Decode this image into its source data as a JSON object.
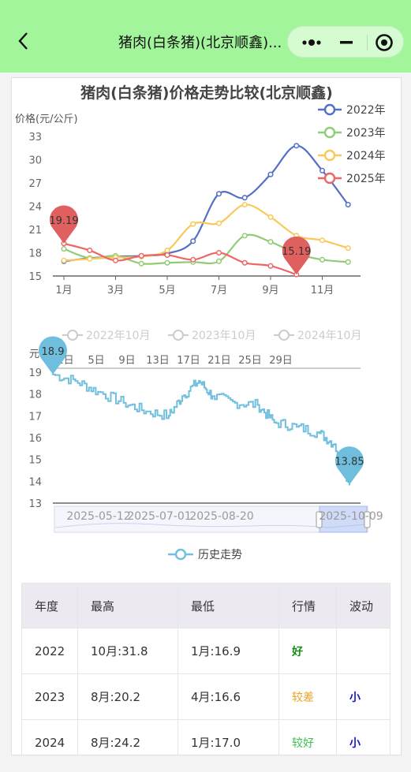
{
  "nav": {
    "title": "猪肉(白条猪)(北京顺鑫)...",
    "back_icon": "chevron-left-icon",
    "more_icon": "more-dots-icon",
    "minimize_icon": "minimize-icon",
    "close_icon": "target-close-icon"
  },
  "chart_data": [
    {
      "type": "line",
      "title": "猪肉(白条猪)价格走势比较(北京顺鑫)",
      "ylabel": "价格(元/公斤)",
      "ylim": [
        15,
        33
      ],
      "yticks": [
        "15",
        "18",
        "21",
        "24",
        "27",
        "30",
        "33"
      ],
      "xticks": [
        "1月",
        "3月",
        "5月",
        "7月",
        "9月",
        "11月"
      ],
      "legend_position": "top-right",
      "series": [
        {
          "name": "2022年",
          "color": "#5470c6",
          "x": [
            1,
            2,
            3,
            4,
            5,
            6,
            7,
            8,
            9,
            10,
            11,
            12
          ],
          "values": [
            16.9,
            17.3,
            17.5,
            17.6,
            17.9,
            19.5,
            25.6,
            25.1,
            28.1,
            31.8,
            28.6,
            24.2
          ]
        },
        {
          "name": "2023年",
          "color": "#91cc75",
          "x": [
            1,
            2,
            3,
            4,
            5,
            6,
            7,
            8,
            9,
            10,
            11,
            12
          ],
          "values": [
            18.5,
            17.3,
            17.6,
            16.6,
            16.7,
            16.8,
            16.9,
            20.2,
            19.4,
            17.9,
            17.1,
            16.8
          ]
        },
        {
          "name": "2024年",
          "color": "#fac858",
          "x": [
            1,
            2,
            3,
            4,
            5,
            6,
            7,
            8,
            9,
            10,
            11,
            12
          ],
          "values": [
            17.0,
            17.2,
            17.4,
            17.5,
            18.3,
            21.7,
            21.8,
            24.2,
            22.6,
            20.2,
            19.6,
            18.6
          ]
        },
        {
          "name": "2025年",
          "color": "#ee6666",
          "x": [
            1,
            2,
            3,
            4,
            5,
            6,
            7,
            8,
            9,
            10
          ],
          "values": [
            19.19,
            18.3,
            17.0,
            17.6,
            17.7,
            17.1,
            18.0,
            16.7,
            16.3,
            15.19
          ]
        }
      ],
      "markers": [
        {
          "label": "19.19",
          "x": 1,
          "y": 19.19
        },
        {
          "label": "15.19",
          "x": 10,
          "y": 15.19
        }
      ]
    },
    {
      "type": "line",
      "ylabel": "元",
      "ylim": [
        13,
        19
      ],
      "yticks": [
        "13",
        "14",
        "15",
        "16",
        "17",
        "18",
        "19"
      ],
      "top_xticks": [
        "1日",
        "5日",
        "9日",
        "13日",
        "17日",
        "21日",
        "25日",
        "29日"
      ],
      "bottom_xticks": [
        "2025-05-12",
        "2025-07-01",
        "2025-08-20",
        "2025-10-09"
      ],
      "top_legend": [
        "2022年10月",
        "2023年10月",
        "2024年10月"
      ],
      "legend_position": "bottom",
      "series": [
        {
          "name": "历史走势",
          "color": "#73c0de",
          "x": [
            "2025-03-26",
            "2025-04-10",
            "2025-04-25",
            "2025-05-12",
            "2025-05-27",
            "2025-06-11",
            "2025-06-20",
            "2025-07-01",
            "2025-07-10",
            "2025-07-25",
            "2025-08-09",
            "2025-08-20",
            "2025-09-04",
            "2025-09-19",
            "2025-09-29",
            "2025-10-09"
          ],
          "values": [
            18.9,
            18.6,
            18.1,
            17.6,
            17.2,
            17.0,
            17.9,
            18.6,
            17.9,
            17.6,
            17.5,
            16.7,
            16.5,
            16.2,
            15.7,
            13.85
          ]
        }
      ],
      "markers": [
        {
          "label": "18.9",
          "x": "2025-03-26",
          "y": 18.9
        },
        {
          "label": "13.85",
          "x": "2025-10-09",
          "y": 13.85
        }
      ]
    }
  ],
  "table": {
    "headers": [
      "年度",
      "最高",
      "最低",
      "行情",
      "波动"
    ],
    "rows": [
      {
        "year": "2022",
        "high": "10月:31.8",
        "low": "1月:16.9",
        "trend": "好",
        "trend_class": "good",
        "vol": ""
      },
      {
        "year": "2023",
        "high": "8月:20.2",
        "low": "4月:16.6",
        "trend": "较差",
        "trend_class": "bad",
        "vol": "小"
      },
      {
        "year": "2024",
        "high": "8月:24.2",
        "low": "1月:17.0",
        "trend": "较好",
        "trend_class": "ok",
        "vol": "小"
      }
    ]
  }
}
